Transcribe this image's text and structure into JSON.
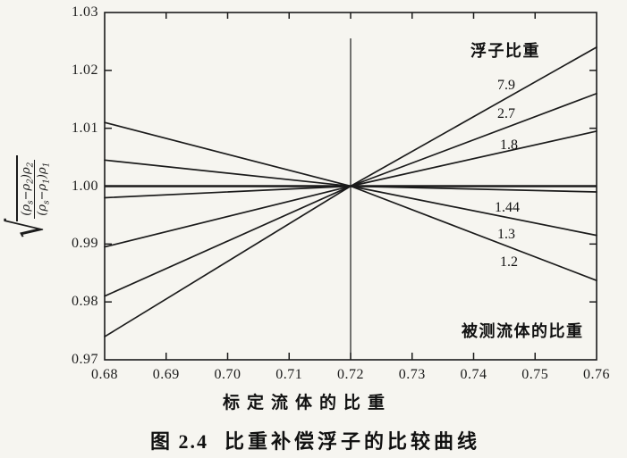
{
  "figure": {
    "caption_prefix": "图 2.4",
    "caption_text": "比重补偿浮子的比较曲线"
  },
  "chart_data": {
    "type": "line",
    "title": "图 2.4 比重补偿浮子的比较曲线",
    "xlabel": "标定流体的比重",
    "ylabel": "√[(ρs−ρ2)ρ2 / ((ρs−ρ1)ρ1)]",
    "xlim": [
      0.68,
      0.76
    ],
    "ylim": [
      0.97,
      1.03
    ],
    "grid": false,
    "legend_position": "labels-inline-right",
    "x_tick_labels": [
      "0.68",
      "0.69",
      "0.70",
      "0.71",
      "0.72",
      "0.73",
      "0.74",
      "0.75",
      "0.76"
    ],
    "x_tick_values": [
      0.68,
      0.69,
      0.7,
      0.71,
      0.72,
      0.73,
      0.74,
      0.75,
      0.76
    ],
    "y_tick_labels": [
      "1.03",
      "1.02",
      "1.01",
      "1.00",
      "0.99",
      "0.98",
      "0.97"
    ],
    "y_tick_values": [
      1.03,
      1.02,
      1.01,
      1.0,
      0.99,
      0.98,
      0.97
    ],
    "x": [
      0.68,
      0.72,
      0.76
    ],
    "series": [
      {
        "name": "7.9",
        "values": [
          0.974,
          1.0,
          1.024
        ]
      },
      {
        "name": "2.7",
        "values": [
          0.981,
          1.0,
          1.016
        ]
      },
      {
        "name": "1.8",
        "values": [
          0.9895,
          1.0,
          1.0095
        ]
      },
      {
        "name": "1.44",
        "values": [
          0.998,
          1.0,
          0.999
        ]
      },
      {
        "name": "1.3",
        "values": [
          1.0045,
          1.0,
          0.9915
        ]
      },
      {
        "name": "1.2",
        "values": [
          1.011,
          1.0,
          0.9837
        ]
      }
    ],
    "series_group_labels": {
      "upper": "浮子比重",
      "lower": "被测流体的比重"
    },
    "reference_lines": {
      "horizontal_y": 1.0,
      "vertical_x": 0.72
    },
    "ink_color": "#1b1b1b",
    "background_color": "#f6f5f0"
  },
  "formula": {
    "radical": "√",
    "open": "(ρ",
    "s": "s",
    "minus": "−ρ",
    "one": "1",
    "two": "2",
    "close": ")ρ"
  }
}
